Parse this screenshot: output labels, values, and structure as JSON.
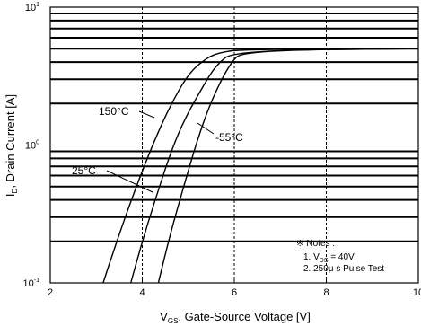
{
  "chart_data": {
    "type": "line",
    "xlabel": "V GS, Gate-Source Voltage [V]",
    "xlabel_main": "V",
    "xlabel_sub": "GS",
    "xlabel_rest": ", Gate-Source Voltage [V]",
    "ylabel_main": "I",
    "ylabel_sub": "D",
    "ylabel_rest": ", Drain Current [A]",
    "xlim": [
      2,
      10
    ],
    "ylim": [
      0.1,
      10
    ],
    "y_scale": "log",
    "grid": true,
    "x_ticks": [
      "2",
      "4",
      "6",
      "8",
      "10"
    ],
    "y_ticks": [
      {
        "base": "10",
        "exp": "-1"
      },
      {
        "base": "10",
        "exp": "0"
      },
      {
        "base": "10",
        "exp": "1"
      }
    ],
    "series": [
      {
        "name": "150°C",
        "x": [
          3.15,
          3.4,
          3.7,
          4.0,
          4.3,
          4.6,
          5.0,
          5.4,
          5.7,
          6.2,
          10
        ],
        "y": [
          0.1,
          0.18,
          0.35,
          0.65,
          1.15,
          1.9,
          3.3,
          4.3,
          4.7,
          4.95,
          5.0
        ]
      },
      {
        "name": "25°C",
        "x": [
          3.75,
          4.0,
          4.3,
          4.6,
          4.9,
          5.3,
          5.6,
          6.0,
          10
        ],
        "y": [
          0.1,
          0.2,
          0.42,
          0.85,
          1.5,
          2.6,
          3.8,
          4.85,
          5.0
        ]
      },
      {
        "name": "-55°C",
        "x": [
          4.35,
          4.6,
          4.9,
          5.2,
          5.5,
          5.9,
          6.2,
          10
        ],
        "y": [
          0.1,
          0.22,
          0.5,
          1.1,
          2.1,
          3.9,
          4.85,
          5.0
        ]
      }
    ],
    "annotations": {
      "label_150": "150",
      "label_25": "25",
      "label_m55": "-55",
      "deg_c": "°C",
      "notes_mark": "※",
      "notes_title": "Notes :",
      "note1_pre": "1. V",
      "note1_sub": "DS",
      "note1_post": " = 40V",
      "note2": "2. 250μ s Pulse Test"
    }
  }
}
